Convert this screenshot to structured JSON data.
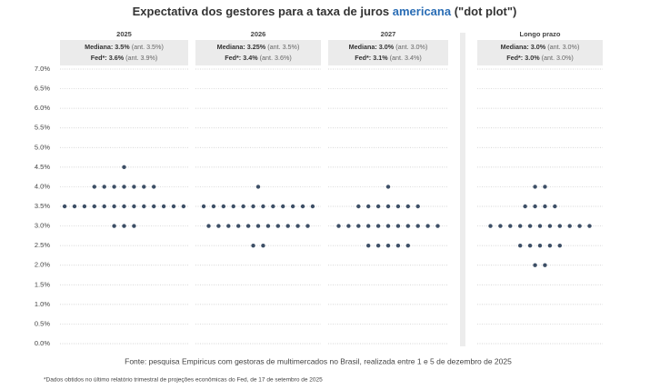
{
  "chart_data": {
    "type": "dot",
    "title_before": "Expectativa dos gestores para a taxa de juros",
    "title_highlight": "americana",
    "title_after": "(\"dot plot\")",
    "source": "Fonte: pesquisa Empiricus com gestoras de multimercados no Brasil, realizada entre 1 e 5 de dezembro de 2025",
    "footnote": "*Dados obtidos no último relatório trimestral de projeções econômicas do Fed, de 17 de setembro de 2025",
    "ylim": [
      0,
      7
    ],
    "yticks": [
      {
        "value": 0,
        "label": "0.0%"
      },
      {
        "value": 0.5,
        "label": "0.5%"
      },
      {
        "value": 1,
        "label": "1.0%"
      },
      {
        "value": 1.5,
        "label": "1.5%"
      },
      {
        "value": 2,
        "label": "2.0%"
      },
      {
        "value": 2.5,
        "label": "2.5%"
      },
      {
        "value": 3,
        "label": "3.0%"
      },
      {
        "value": 3.5,
        "label": "3.5%"
      },
      {
        "value": 4,
        "label": "4.0%"
      },
      {
        "value": 4.5,
        "label": "4.5%"
      },
      {
        "value": 5,
        "label": "5.0%"
      },
      {
        "value": 5.5,
        "label": "5.5%"
      },
      {
        "value": 6,
        "label": "6.0%"
      },
      {
        "value": 6.5,
        "label": "6.5%"
      },
      {
        "value": 7,
        "label": "7.0%"
      }
    ],
    "grid": true,
    "color": "#3d4f66",
    "series": [
      {
        "name": "2025",
        "median": "Mediana: 3.5%",
        "median_prev": "(ant. 3.5%)",
        "fed": "Fed*: 3.6%",
        "fed_prev": "(ant. 3.9%)",
        "values": [
          4.5,
          4,
          4,
          4,
          4,
          4,
          4,
          4,
          3.5,
          3.5,
          3.5,
          3.5,
          3.5,
          3.5,
          3.5,
          3.5,
          3.5,
          3.5,
          3.5,
          3.5,
          3.5,
          3,
          3,
          3
        ]
      },
      {
        "name": "2026",
        "median": "Mediana: 3.25%",
        "median_prev": "(ant. 3.5%)",
        "fed": "Fed*: 3.4%",
        "fed_prev": "(ant. 3.6%)",
        "values": [
          4,
          3.5,
          3.5,
          3.5,
          3.5,
          3.5,
          3.5,
          3.5,
          3.5,
          3.5,
          3.5,
          3.5,
          3.5,
          3,
          3,
          3,
          3,
          3,
          3,
          3,
          3,
          3,
          3,
          3,
          2.5,
          2.5
        ]
      },
      {
        "name": "2027",
        "median": "Mediana: 3.0%",
        "median_prev": "(ant. 3.0%)",
        "fed": "Fed*: 3.1%",
        "fed_prev": "(ant. 3.4%)",
        "values": [
          4,
          3.5,
          3.5,
          3.5,
          3.5,
          3.5,
          3.5,
          3.5,
          3,
          3,
          3,
          3,
          3,
          3,
          3,
          3,
          3,
          3,
          3,
          2.5,
          2.5,
          2.5,
          2.5,
          2.5
        ]
      },
      {
        "name": "Longo prazo",
        "median": "Mediana: 3.0%",
        "median_prev": "(ant. 3.0%)",
        "fed": "Fed*: 3.0%",
        "fed_prev": "(ant. 3.0%)",
        "values": [
          4,
          4,
          3.5,
          3.5,
          3.5,
          3.5,
          3,
          3,
          3,
          3,
          3,
          3,
          3,
          3,
          3,
          3,
          3,
          2.5,
          2.5,
          2.5,
          2.5,
          2.5,
          2,
          2
        ]
      }
    ]
  }
}
